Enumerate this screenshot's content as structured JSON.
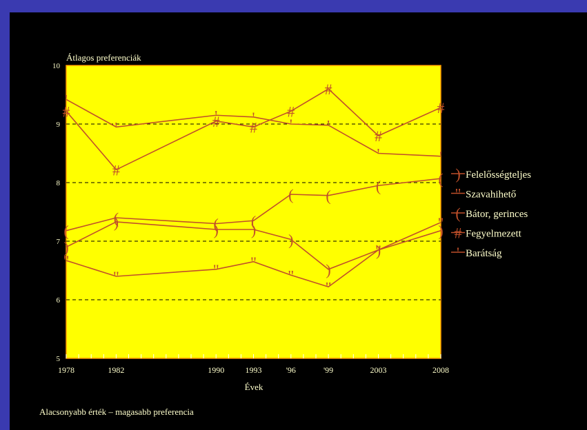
{
  "colors": {
    "frame": "#3a3ab0",
    "panel": "#000000",
    "plot_bg": "#ffff00",
    "plot_border": "#ff9900",
    "series": "#c0502a",
    "text": "#ffffcc",
    "grid": "#000000"
  },
  "footer_text": "Alacsonyabb érték  –  magasabb preferencia",
  "chart_data": {
    "type": "line",
    "ylabel": "Átlagos preferenciák",
    "xlabel": "Évek",
    "ylim": [
      5,
      10
    ],
    "yticks": [
      "5",
      "6",
      "7",
      "8",
      "9",
      "10"
    ],
    "x": [
      1978,
      1982,
      1990,
      1993,
      1996,
      1999,
      2003,
      2008
    ],
    "x_tick_labels": [
      "1978",
      "1982",
      "1990",
      "1993",
      "'96",
      "'99",
      "2003",
      "2008"
    ],
    "grid": "horizontal dashed",
    "legend_position": "right",
    "series": [
      {
        "name": "Felelősségteljes",
        "marker": ")",
        "values": [
          6.9,
          7.33,
          7.2,
          7.2,
          7.03,
          6.52,
          6.85,
          7.18
        ]
      },
      {
        "name": "Szavahihető",
        "marker": "\"",
        "values": [
          6.67,
          6.4,
          6.52,
          6.65,
          6.42,
          6.22,
          6.85,
          7.32
        ]
      },
      {
        "name": "Bátor, gerinces",
        "marker": "(",
        "values": [
          7.18,
          7.4,
          7.3,
          7.35,
          7.8,
          7.78,
          7.95,
          8.07
        ]
      },
      {
        "name": "Fegyelmezett",
        "marker": "#",
        "values": [
          9.22,
          8.22,
          9.05,
          8.95,
          9.22,
          9.6,
          8.8,
          9.28
        ]
      },
      {
        "name": "Barátság",
        "marker": "'",
        "values": [
          9.42,
          8.95,
          9.15,
          9.12,
          9.0,
          8.98,
          8.5,
          8.45
        ]
      }
    ]
  }
}
